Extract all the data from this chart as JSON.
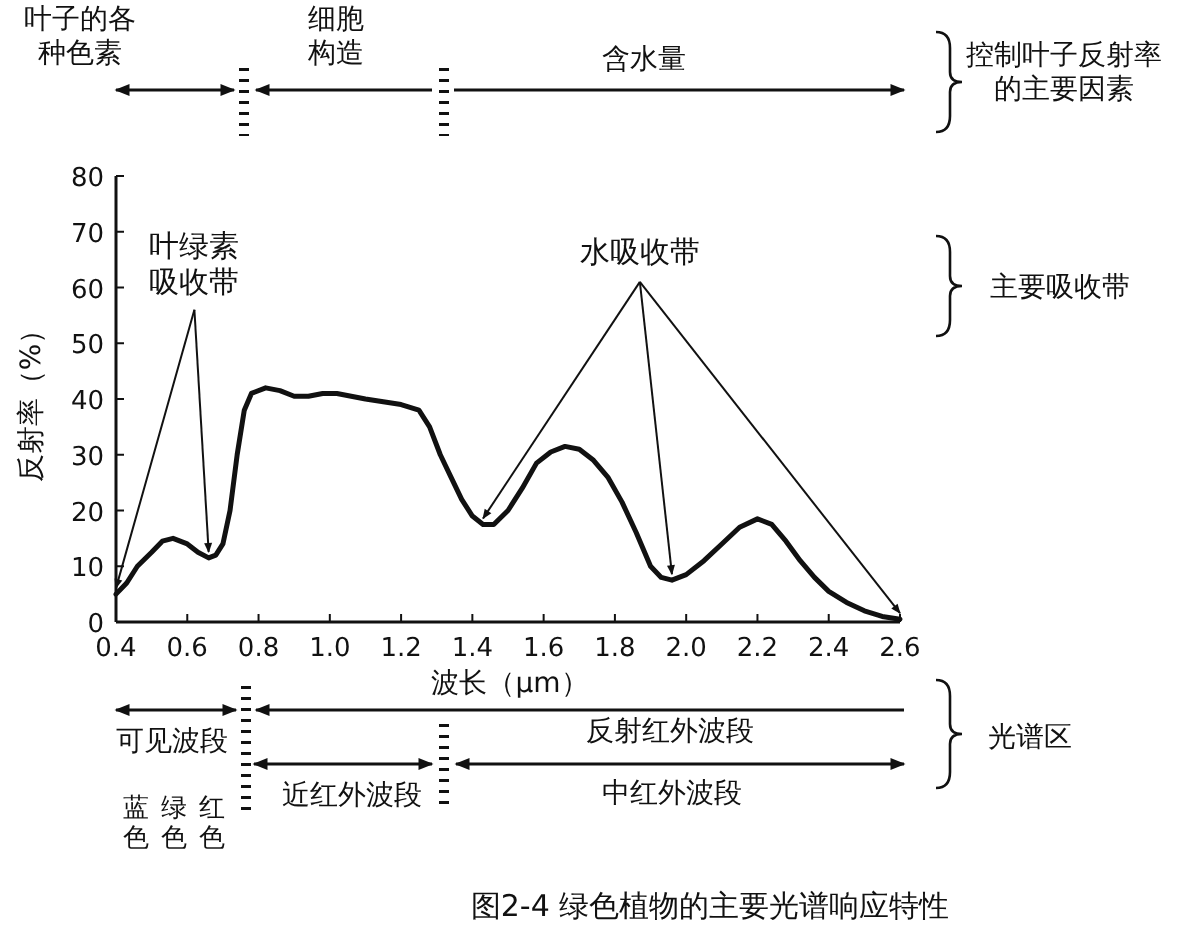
{
  "chart_data": {
    "type": "line",
    "title": "图2-4 绿色植物的主要光谱响应特性",
    "xlabel": "波长（μm）",
    "ylabel": "反射率（%）",
    "x": [
      0.4,
      0.43,
      0.46,
      0.5,
      0.53,
      0.56,
      0.6,
      0.63,
      0.66,
      0.68,
      0.7,
      0.72,
      0.74,
      0.76,
      0.78,
      0.82,
      0.86,
      0.9,
      0.94,
      0.98,
      1.02,
      1.06,
      1.1,
      1.15,
      1.2,
      1.25,
      1.28,
      1.31,
      1.34,
      1.37,
      1.4,
      1.43,
      1.46,
      1.5,
      1.54,
      1.58,
      1.62,
      1.66,
      1.7,
      1.74,
      1.78,
      1.82,
      1.86,
      1.9,
      1.93,
      1.96,
      2.0,
      2.05,
      2.1,
      2.15,
      2.2,
      2.24,
      2.28,
      2.32,
      2.36,
      2.4,
      2.45,
      2.5,
      2.55,
      2.6
    ],
    "series": [
      {
        "color": "#111111",
        "values": [
          5,
          7,
          10,
          12.5,
          14.5,
          15,
          14,
          12.5,
          11.5,
          12,
          14,
          20,
          30,
          38,
          41,
          42,
          41.5,
          40.5,
          40.5,
          41,
          41,
          40.5,
          40,
          39.5,
          39,
          38,
          35,
          30,
          26,
          22,
          19,
          17.5,
          17.5,
          20,
          24,
          28.5,
          30.5,
          31.5,
          31,
          29,
          26,
          21.5,
          16,
          10,
          8,
          7.5,
          8.5,
          11,
          14,
          17,
          18.5,
          17.5,
          14.5,
          11,
          8,
          5.5,
          3.5,
          2,
          1,
          0.5
        ]
      }
    ],
    "xlim": [
      0.4,
      2.6
    ],
    "ylim": [
      0,
      80
    ],
    "xticks": [
      0.4,
      0.6,
      0.8,
      {
        "value": 1,
        "label": "1.0"
      },
      1.2,
      1.4,
      1.6,
      1.8,
      {
        "value": 2,
        "label": "2.0"
      },
      2.2,
      2.4,
      2.6
    ],
    "yticks": [
      0,
      10,
      20,
      30,
      40,
      50,
      60,
      70,
      80
    ],
    "grid": false,
    "line_style": "solid",
    "annotations": [
      {
        "text": "叶绿素吸收带",
        "x": 0.66,
        "y": 11.5
      },
      {
        "text": "水吸收带",
        "x": 1.96,
        "y": 7.5
      },
      "主要吸收带",
      "叶子的各种色素",
      "细胞构造",
      "含水量",
      "控制叶子反射率的主要因素",
      "可见波段",
      "反射红外波段",
      "近红外波段",
      "中红外波段",
      "光谱区",
      "蓝色",
      "绿色",
      "红色"
    ]
  }
}
